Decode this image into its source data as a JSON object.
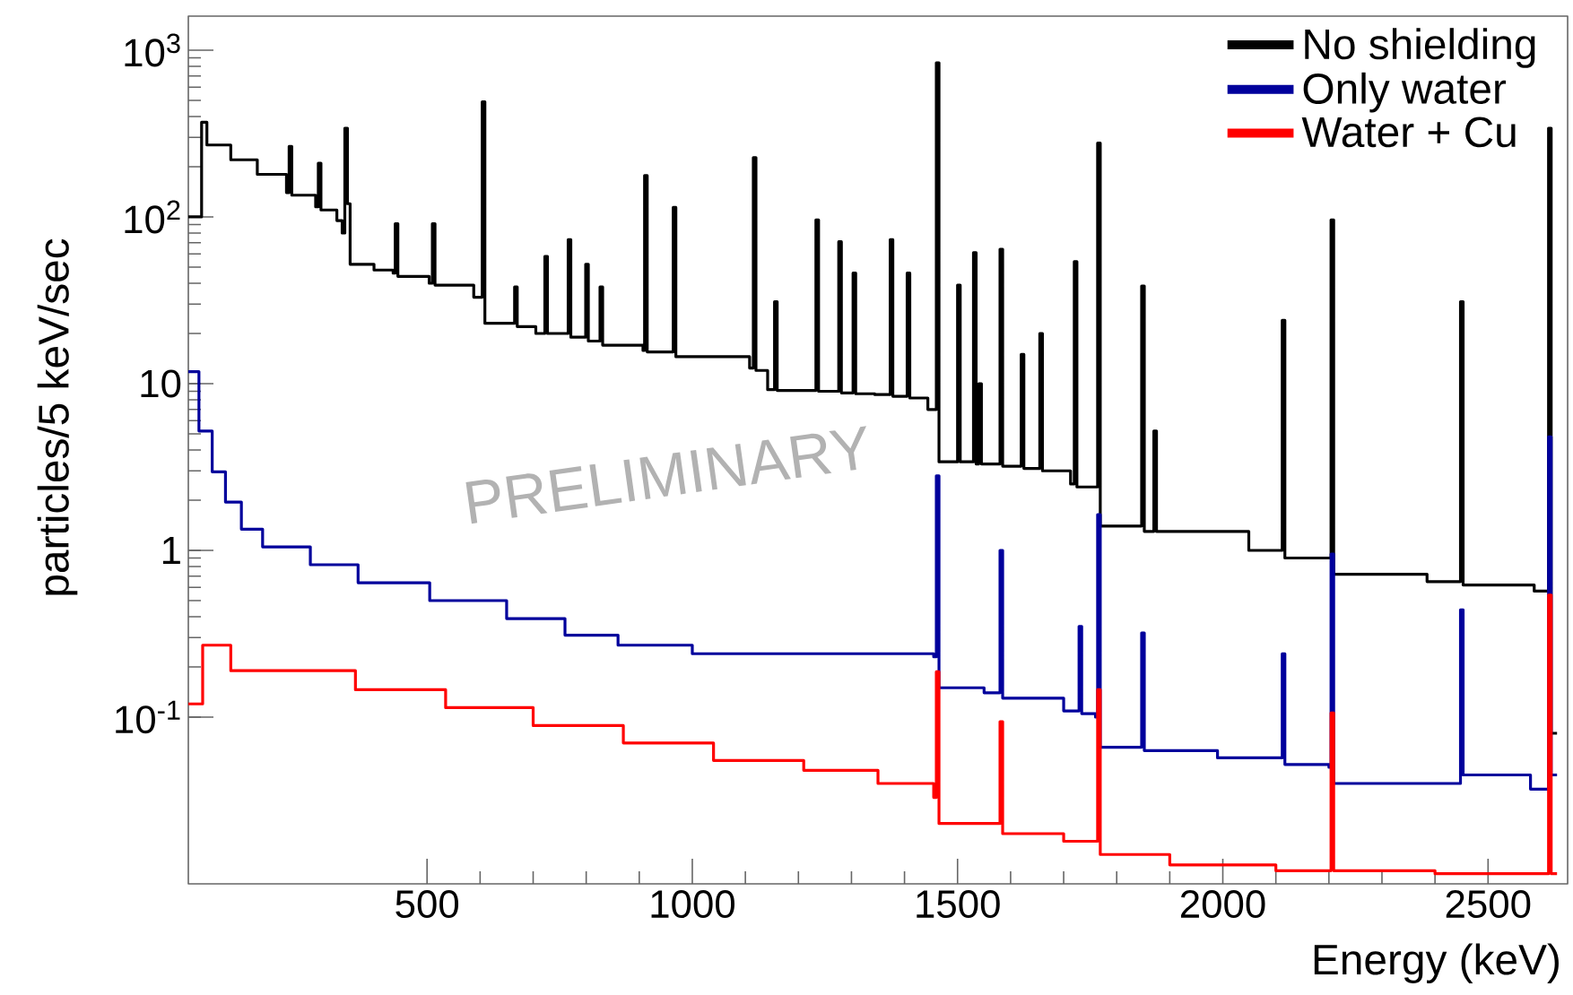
{
  "chart_data": {
    "type": "step",
    "xlabel": "Energy (keV)",
    "ylabel": "particles/5 keV/sec",
    "annotations": [
      "PRELIMINARY"
    ],
    "log": "y",
    "grid": false,
    "legend": "top right",
    "line_style": "solid",
    "marker": "none",
    "xlim": [
      50,
      2650
    ],
    "ylim": [
      0.01,
      1600
    ],
    "xticks": [
      500,
      1000,
      1500,
      2000,
      2500
    ],
    "yticks": [
      {
        "value": 0.1,
        "label": "10$^{-1}$"
      },
      {
        "value": 1,
        "label": "1"
      },
      {
        "value": 10,
        "label": "10"
      },
      {
        "value": 100,
        "label": "10$^{2}$"
      },
      {
        "value": 1000,
        "label": "10$^{3}$"
      }
    ],
    "series": [
      {
        "name": "No shielding",
        "color": "#000000",
        "x": [
          50,
          75,
          85,
          130,
          180,
          235,
          240,
          245,
          290,
          295,
          300,
          330,
          340,
          345,
          350,
          355,
          400,
          436,
          440,
          445,
          504,
          510,
          515,
          588,
          604,
          609,
          621,
          665,
          670,
          705,
          722,
          727,
          766,
          771,
          799,
          804,
          826,
          831,
          907,
          910,
          915,
          964,
          969,
          1108,
          1115,
          1120,
          1142,
          1155,
          1160,
          1233,
          1238,
          1276,
          1281,
          1303,
          1308,
          1344,
          1373,
          1378,
          1405,
          1410,
          1444,
          1460,
          1465,
          1500,
          1505,
          1530,
          1535,
          1540,
          1545,
          1580,
          1585,
          1620,
          1625,
          1655,
          1660,
          1713,
          1720,
          1725,
          1764,
          1769,
          1847,
          1852,
          1870,
          1875,
          2049,
          2112,
          2117,
          2204,
          2209,
          2385,
          2448,
          2453,
          2587,
          2614,
          2619,
          2630
        ],
        "values": [
          100,
          370,
          270,
          220,
          180,
          140,
          265,
          135,
          115,
          210,
          110,
          95,
          80,
          340,
          120,
          52,
          48,
          46,
          91,
          44,
          40,
          91,
          39,
          33,
          490,
          23,
          23,
          38,
          22,
          20,
          58,
          20,
          73,
          19,
          52,
          18,
          38,
          17,
          15.8,
          177,
          15.5,
          114,
          14.5,
          12.4,
          227,
          12,
          9.2,
          31,
          9.1,
          96,
          9,
          71,
          8.8,
          46,
          8.7,
          8.6,
          73,
          8.4,
          46,
          8.2,
          7.0,
          840,
          3.4,
          39,
          3.4,
          61,
          3.3,
          10,
          3.3,
          64,
          3.2,
          15,
          3.1,
          20,
          3,
          2.5,
          54,
          2.4,
          277,
          1.4,
          38.5,
          1.3,
          5.2,
          1.3,
          1.0,
          24,
          0.9,
          96,
          0.72,
          0.65,
          31,
          0.62,
          0.57,
          340,
          0.08,
          0.08
        ]
      },
      {
        "name": "Only water",
        "color": "#00009c",
        "x": [
          50,
          70,
          95,
          120,
          150,
          190,
          280,
          370,
          505,
          650,
          760,
          860,
          1000,
          1100,
          1455,
          1460,
          1465,
          1550,
          1580,
          1585,
          1700,
          1729,
          1734,
          1760,
          1764,
          1769,
          1847,
          1852,
          1990,
          2112,
          2117,
          2200,
          2204,
          2209,
          2448,
          2453,
          2580,
          2614,
          2619,
          2630
        ],
        "values": [
          11.8,
          5.2,
          2.96,
          1.95,
          1.34,
          1.05,
          0.82,
          0.64,
          0.5,
          0.39,
          0.31,
          0.27,
          0.24,
          0.24,
          0.23,
          2.8,
          0.15,
          0.14,
          1.0,
          0.13,
          0.109,
          0.35,
          0.105,
          0.1,
          1.64,
          0.066,
          0.32,
          0.063,
          0.057,
          0.24,
          0.052,
          0.05,
          0.95,
          0.04,
          0.44,
          0.045,
          0.037,
          4.8,
          0.045,
          0.045
        ]
      },
      {
        "name": "Water + Cu",
        "color": "#ff0000",
        "x": [
          50,
          77,
          130,
          200,
          365,
          535,
          700,
          870,
          1040,
          1210,
          1350,
          1455,
          1460,
          1465,
          1580,
          1585,
          1700,
          1764,
          1769,
          1900,
          2100,
          2204,
          2209,
          2400,
          2614,
          2619,
          2630
        ],
        "values": [
          0.12,
          0.27,
          0.19,
          0.19,
          0.146,
          0.114,
          0.089,
          0.07,
          0.055,
          0.048,
          0.04,
          0.033,
          0.187,
          0.023,
          0.094,
          0.02,
          0.018,
          0.146,
          0.015,
          0.013,
          0.012,
          0.106,
          0.012,
          0.0115,
          0.54,
          0.0115,
          0.0115
        ]
      }
    ]
  }
}
